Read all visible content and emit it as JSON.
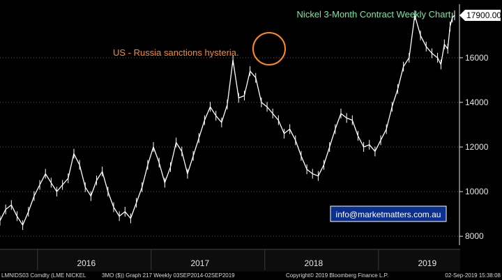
{
  "chart_data": {
    "type": "line",
    "title": "Nickel 3-Month Contract Weekly Chart.",
    "annotation": "US - Russia sanctions hysteria.",
    "contact": "info@marketmatters.com.au",
    "last_value_label": "17900.00",
    "ylim": [
      7600,
      18400
    ],
    "yticks": [
      "8000",
      "10000",
      "12000",
      "14000",
      "16000"
    ],
    "xlim": [
      2015.67,
      2019.67
    ],
    "year_labels": [
      {
        "label": "2016",
        "x": 2016.0
      },
      {
        "label": "2017",
        "x": 2017.0
      },
      {
        "label": "2018",
        "x": 2018.0
      },
      {
        "label": "2019",
        "x": 2019.0
      }
    ],
    "series": [
      {
        "x": [
          2015.67,
          2015.72,
          2015.77,
          2015.82,
          2015.87,
          2015.92,
          2015.97,
          2016.02,
          2016.07,
          2016.12,
          2016.17,
          2016.22,
          2016.27,
          2016.32,
          2016.37,
          2016.42,
          2016.47,
          2016.52,
          2016.57,
          2016.62,
          2016.67,
          2016.72,
          2016.77,
          2016.82,
          2016.87,
          2016.92,
          2016.97,
          2017.02,
          2017.07,
          2017.12,
          2017.17,
          2017.22,
          2017.27,
          2017.32,
          2017.37,
          2017.42,
          2017.47,
          2017.52,
          2017.57,
          2017.62,
          2017.67,
          2017.72,
          2017.77,
          2017.82,
          2017.87,
          2017.92,
          2017.97,
          2018.02,
          2018.07,
          2018.12,
          2018.17,
          2018.22,
          2018.27,
          2018.32,
          2018.37,
          2018.42,
          2018.47,
          2018.52,
          2018.57,
          2018.62,
          2018.67,
          2018.72,
          2018.77,
          2018.82,
          2018.87,
          2018.92,
          2018.97,
          2019.02,
          2019.07,
          2019.12,
          2019.17,
          2019.22,
          2019.27,
          2019.32,
          2019.37,
          2019.42,
          2019.47,
          2019.52,
          2019.55,
          2019.58,
          2019.61,
          2019.63,
          2019.65,
          2019.67
        ],
        "y": [
          8700,
          9200,
          9400,
          8900,
          8500,
          9100,
          9800,
          10300,
          10800,
          10400,
          10000,
          10300,
          10600,
          11700,
          11200,
          10200,
          9800,
          10500,
          10900,
          10000,
          9300,
          8900,
          9100,
          8800,
          9500,
          10200,
          11200,
          12000,
          11300,
          10400,
          11100,
          12200,
          11800,
          10800,
          11600,
          12400,
          13200,
          13800,
          13400,
          13100,
          13900,
          15900,
          14200,
          14300,
          15400,
          15100,
          14000,
          13800,
          13500,
          13200,
          12600,
          12800,
          12300,
          11600,
          11000,
          10800,
          10700,
          11200,
          12000,
          12800,
          13500,
          13300,
          13200,
          12500,
          12000,
          12100,
          11800,
          12300,
          12800,
          13800,
          14600,
          15600,
          16000,
          17900,
          17000,
          16500,
          16200,
          16000,
          15700,
          16600,
          16400,
          17400,
          17800,
          17900
        ]
      }
    ]
  },
  "footer": {
    "security": "LMNIDS03 Comdty (LME NICKEL",
    "graph_info": "3MO ($)) Graph 217  Weekly 03SEP2014-02SEP2019",
    "copyright": "Copyright© 2019 Bloomberg Finance L.P.",
    "date": "02-Sep-2019 15:38:08"
  },
  "colors": {
    "background": "#000000",
    "series": "#ffffff",
    "title": "#7ee6a6",
    "annotation": "#ff8a1e",
    "email_box": "#0a2f8c",
    "axis": "#e6e6e6"
  }
}
